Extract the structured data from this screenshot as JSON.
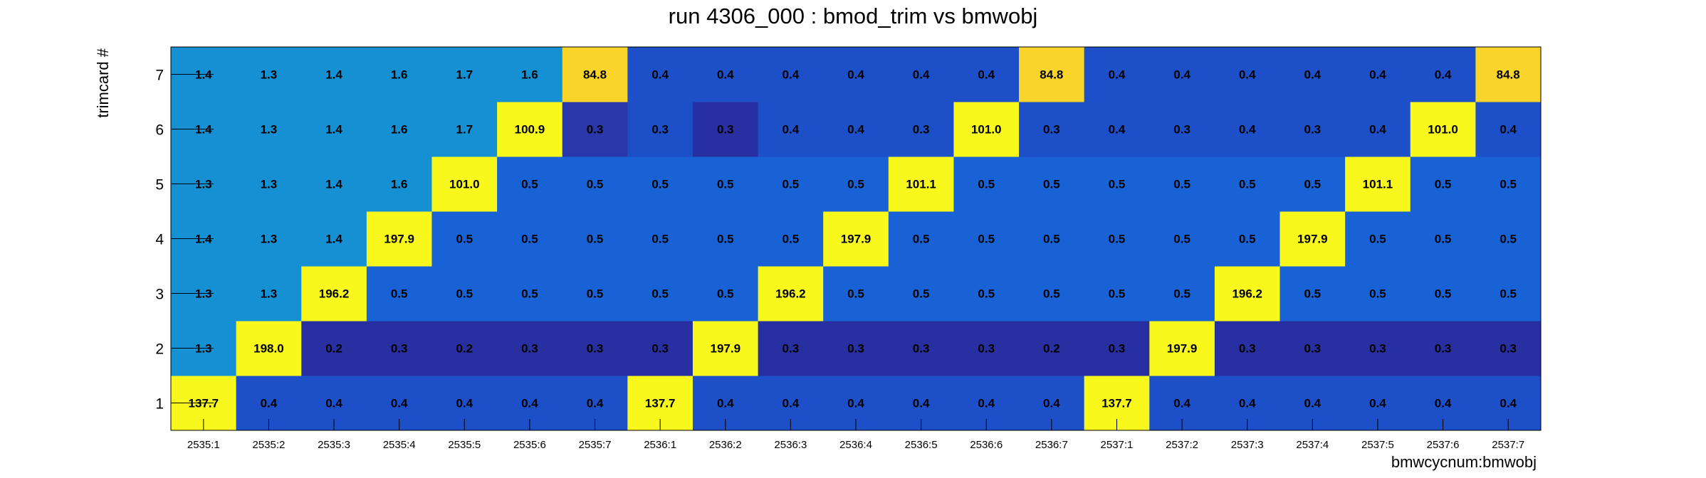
{
  "chart_data": {
    "type": "heatmap",
    "title": "run 4306_000 : bmod_trim vs bmwobj",
    "xlabel": "bmwcycnum:bmwobj",
    "ylabel": "trimcard #",
    "x_categories": [
      "2535:1",
      "2535:2",
      "2535:3",
      "2535:4",
      "2535:5",
      "2535:6",
      "2535:7",
      "2536:1",
      "2536:2",
      "2536:3",
      "2536:4",
      "2536:5",
      "2536:6",
      "2536:7",
      "2537:1",
      "2537:2",
      "2537:3",
      "2537:4",
      "2537:5",
      "2537:6",
      "2537:7"
    ],
    "y_categories": [
      "1",
      "2",
      "3",
      "4",
      "5",
      "6",
      "7"
    ],
    "values": [
      [
        "137.7",
        "0.4",
        "0.4",
        "0.4",
        "0.4",
        "0.4",
        "0.4",
        "137.7",
        "0.4",
        "0.4",
        "0.4",
        "0.4",
        "0.4",
        "0.4",
        "137.7",
        "0.4",
        "0.4",
        "0.4",
        "0.4",
        "0.4",
        "0.4"
      ],
      [
        "1.3",
        "198.0",
        "0.2",
        "0.3",
        "0.2",
        "0.3",
        "0.3",
        "0.3",
        "197.9",
        "0.3",
        "0.3",
        "0.3",
        "0.3",
        "0.2",
        "0.3",
        "197.9",
        "0.3",
        "0.3",
        "0.3",
        "0.3",
        "0.3"
      ],
      [
        "1.3",
        "1.3",
        "196.2",
        "0.5",
        "0.5",
        "0.5",
        "0.5",
        "0.5",
        "0.5",
        "196.2",
        "0.5",
        "0.5",
        "0.5",
        "0.5",
        "0.5",
        "0.5",
        "196.2",
        "0.5",
        "0.5",
        "0.5",
        "0.5"
      ],
      [
        "1.4",
        "1.3",
        "1.4",
        "197.9",
        "0.5",
        "0.5",
        "0.5",
        "0.5",
        "0.5",
        "0.5",
        "197.9",
        "0.5",
        "0.5",
        "0.5",
        "0.5",
        "0.5",
        "0.5",
        "197.9",
        "0.5",
        "0.5",
        "0.5"
      ],
      [
        "1.3",
        "1.3",
        "1.4",
        "1.6",
        "101.0",
        "0.5",
        "0.5",
        "0.5",
        "0.5",
        "0.5",
        "0.5",
        "101.1",
        "0.5",
        "0.5",
        "0.5",
        "0.5",
        "0.5",
        "0.5",
        "101.1",
        "0.5",
        "0.5"
      ],
      [
        "1.4",
        "1.3",
        "1.4",
        "1.6",
        "1.7",
        "100.9",
        "0.3",
        "0.3",
        "0.3",
        "0.4",
        "0.4",
        "0.3",
        "101.0",
        "0.3",
        "0.4",
        "0.3",
        "0.4",
        "0.3",
        "0.4",
        "101.0",
        "0.4"
      ],
      [
        "1.4",
        "1.3",
        "1.4",
        "1.6",
        "1.7",
        "1.6",
        "84.8",
        "0.4",
        "0.4",
        "0.4",
        "0.4",
        "0.4",
        "0.4",
        "84.8",
        "0.4",
        "0.4",
        "0.4",
        "0.4",
        "0.4",
        "0.4",
        "84.8"
      ]
    ],
    "colors": {
      "low": "#282fa0",
      "mid_low": "#1c4fc8",
      "mid": "#1862d6",
      "light": "#1590d2",
      "high_orange": "#f9d42a",
      "high_yellow": "#f8f81c"
    },
    "grid": false
  }
}
